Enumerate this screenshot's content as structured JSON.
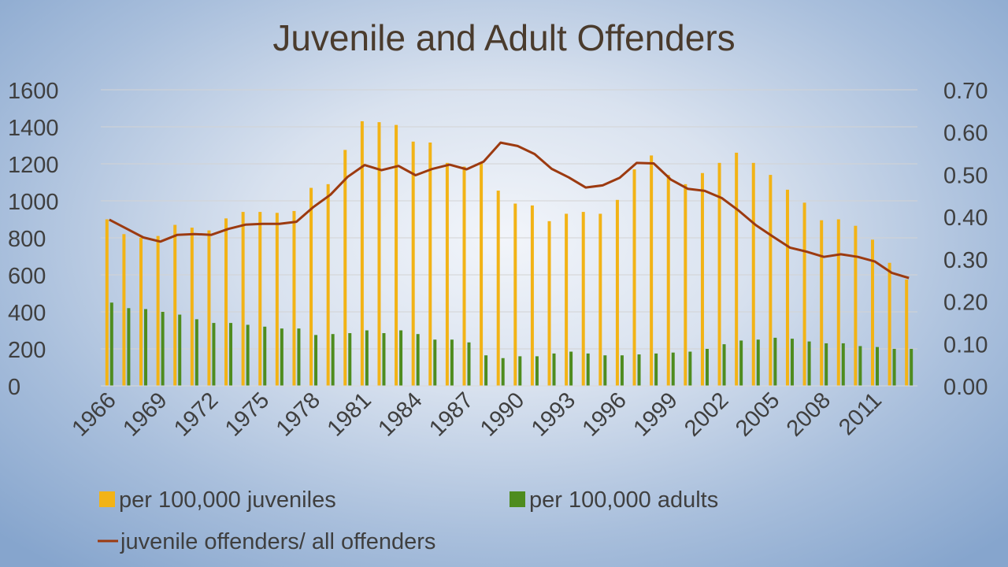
{
  "chart_data": {
    "type": "bar",
    "title": "Juvenile and Adult Offenders",
    "years": [
      1966,
      1967,
      1968,
      1969,
      1970,
      1971,
      1972,
      1973,
      1974,
      1975,
      1976,
      1977,
      1978,
      1979,
      1980,
      1981,
      1982,
      1983,
      1984,
      1985,
      1986,
      1987,
      1988,
      1989,
      1990,
      1991,
      1992,
      1993,
      1994,
      1995,
      1996,
      1997,
      1998,
      1999,
      2000,
      2001,
      2002,
      2003,
      2004,
      2005,
      2006,
      2007,
      2008,
      2009,
      2010,
      2011,
      2012,
      2013
    ],
    "x_tick_labels": [
      "1966",
      "1969",
      "1972",
      "1975",
      "1978",
      "1981",
      "1984",
      "1987",
      "1990",
      "1993",
      "1996",
      "1999",
      "2002",
      "2005",
      "2008",
      "2011"
    ],
    "y_left": {
      "min": 0,
      "max": 1600,
      "ticks": [
        "0",
        "200",
        "400",
        "600",
        "800",
        "1000",
        "1200",
        "1400",
        "1600"
      ]
    },
    "y_right": {
      "min": 0,
      "max": 0.7,
      "ticks": [
        "0.00",
        "0.10",
        "0.20",
        "0.30",
        "0.40",
        "0.50",
        "0.60",
        "0.70"
      ]
    },
    "gridlines": true,
    "legend_position": "bottom",
    "series": [
      {
        "name": "per 100,000 juveniles",
        "type": "bar",
        "axis": "left",
        "color": "#f2b316",
        "values": [
          900,
          820,
          800,
          810,
          870,
          855,
          840,
          905,
          940,
          940,
          935,
          945,
          1070,
          1090,
          1275,
          1430,
          1425,
          1410,
          1320,
          1315,
          1205,
          1185,
          1205,
          1055,
          985,
          975,
          890,
          930,
          940,
          930,
          1005,
          1170,
          1245,
          1140,
          1090,
          1150,
          1205,
          1260,
          1205,
          1140,
          1060,
          990,
          895,
          900,
          865,
          790,
          665,
          575
        ]
      },
      {
        "name": "per 100,000 adults",
        "type": "bar",
        "axis": "left",
        "color": "#4e8c1f",
        "values": [
          450,
          420,
          415,
          400,
          385,
          360,
          340,
          340,
          330,
          320,
          310,
          310,
          275,
          280,
          285,
          300,
          285,
          300,
          280,
          250,
          250,
          235,
          165,
          150,
          160,
          160,
          175,
          185,
          175,
          165,
          165,
          170,
          175,
          180,
          185,
          200,
          225,
          245,
          250,
          260,
          255,
          240,
          230,
          230,
          215,
          210,
          200,
          200
        ]
      },
      {
        "name": "juvenile offenders/ all offenders",
        "type": "line",
        "axis": "right",
        "color": "#9c3a10",
        "values": [
          0.393,
          0.372,
          0.351,
          0.341,
          0.357,
          0.359,
          0.357,
          0.371,
          0.381,
          0.383,
          0.383,
          0.388,
          0.423,
          0.452,
          0.494,
          0.522,
          0.51,
          0.52,
          0.498,
          0.513,
          0.523,
          0.512,
          0.53,
          0.575,
          0.567,
          0.548,
          0.513,
          0.493,
          0.469,
          0.474,
          0.492,
          0.527,
          0.526,
          0.488,
          0.466,
          0.461,
          0.444,
          0.414,
          0.38,
          0.353,
          0.327,
          0.317,
          0.305,
          0.311,
          0.305,
          0.294,
          0.267,
          0.255
        ]
      }
    ]
  }
}
